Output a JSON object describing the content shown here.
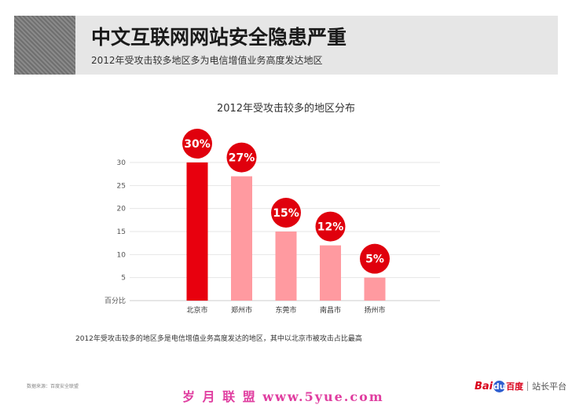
{
  "header": {
    "title": "中文互联网网站安全隐患严重",
    "subtitle": "2012年受攻击较多地区多为电信增值业务高度发达地区"
  },
  "chart_data": {
    "type": "bar",
    "title": "2012年受攻击较多的地区分布",
    "ylabel": "百分比",
    "xlabel": "",
    "categories": [
      "北京市",
      "郑州市",
      "东莞市",
      "南昌市",
      "扬州市"
    ],
    "values": [
      30,
      27,
      15,
      12,
      5
    ],
    "value_labels": [
      "30%",
      "27%",
      "15%",
      "12%",
      "5%"
    ],
    "yticks": [
      "5",
      "10",
      "15",
      "20",
      "25",
      "30"
    ],
    "ylim": [
      0,
      30
    ],
    "grid": true,
    "colors": {
      "highlight": "#e8000e",
      "normal": "#ff9aa0",
      "bubble": "#e0000d"
    }
  },
  "footnote": "2012年受攻击较多的地区多是电信增值业务高度发达的地区，其中以北京市被攻击占比最高",
  "footer": {
    "source": "数据来源：百度安全联盟",
    "watermark": "岁 月 联 盟   www.5yue.com",
    "logo": {
      "bai": "Bai",
      "du": "du",
      "baidu": "百度",
      "platform": "站长平台"
    }
  }
}
